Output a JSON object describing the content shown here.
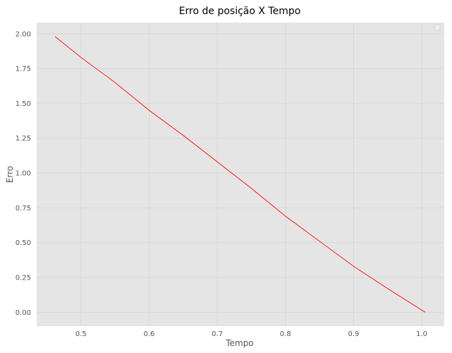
{
  "chart_data": {
    "type": "line",
    "title": "Erro de posição X Tempo",
    "xlabel": "Tempo",
    "ylabel": "Erro",
    "xlim": [
      0.435,
      1.033
    ],
    "ylim": [
      -0.1,
      2.08
    ],
    "xticks": [
      0.5,
      0.6,
      0.7,
      0.8,
      0.9,
      1.0
    ],
    "xtick_labels": [
      "0.5",
      "0.6",
      "0.7",
      "0.8",
      "0.9",
      "1.0"
    ],
    "yticks": [
      0.0,
      0.25,
      0.5,
      0.75,
      1.0,
      1.25,
      1.5,
      1.75,
      2.0
    ],
    "ytick_labels": [
      "0.00",
      "0.25",
      "0.50",
      "0.75",
      "1.00",
      "1.25",
      "1.50",
      "1.75",
      "2.00"
    ],
    "grid": true,
    "legend": "top-right",
    "colors": {
      "plot_background": "#e5e5e5",
      "grid": "#d8d8d8",
      "line": "#ff0000"
    },
    "series": [
      {
        "x": [
          0.462,
          0.5,
          0.55,
          0.6,
          0.65,
          0.7,
          0.75,
          0.8,
          0.85,
          0.9,
          0.95,
          1.005
        ],
        "y": [
          1.98,
          1.83,
          1.65,
          1.45,
          1.27,
          1.08,
          0.89,
          0.69,
          0.51,
          0.33,
          0.17,
          0.0
        ]
      }
    ]
  }
}
